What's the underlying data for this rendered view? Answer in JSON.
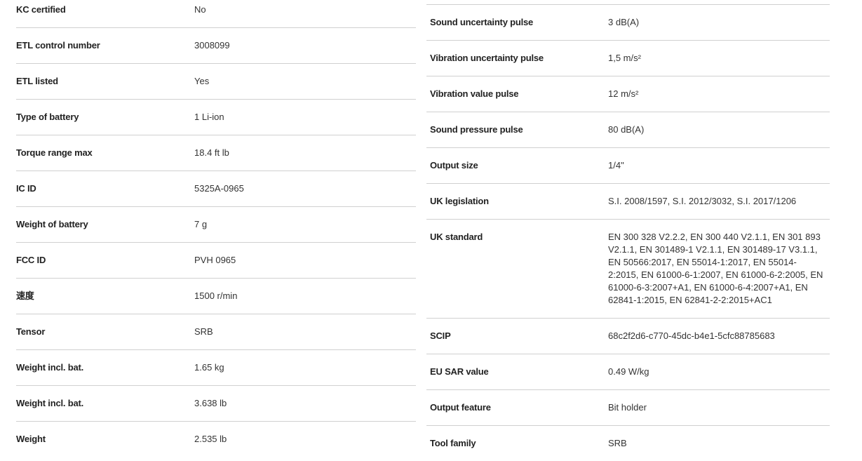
{
  "left": [
    {
      "label": "KC certified",
      "value": "No"
    },
    {
      "label": "ETL control number",
      "value": "3008099"
    },
    {
      "label": "ETL listed",
      "value": "Yes"
    },
    {
      "label": "Type of battery",
      "value": "1 Li-ion"
    },
    {
      "label": "Torque range max",
      "value": "18.4 ft lb"
    },
    {
      "label": "IC ID",
      "value": "5325A-0965"
    },
    {
      "label": "Weight of battery",
      "value": "7 g"
    },
    {
      "label": "FCC ID",
      "value": "PVH 0965"
    },
    {
      "label": "速度",
      "value": "1500 r/min"
    },
    {
      "label": "Tensor",
      "value": "SRB"
    },
    {
      "label": "Weight incl. bat.",
      "value": "1.65 kg"
    },
    {
      "label": "Weight incl. bat.",
      "value": "3.638 lb"
    },
    {
      "label": "Weight",
      "value": "2.535 lb"
    }
  ],
  "right": [
    {
      "label": "Sound uncertainty pulse",
      "value": "3 dB(A)"
    },
    {
      "label": "Vibration uncertainty pulse",
      "value": "1,5 m/s²"
    },
    {
      "label": "Vibration value pulse",
      "value": "12 m/s²"
    },
    {
      "label": "Sound pressure pulse",
      "value": "80 dB(A)"
    },
    {
      "label": "Output size",
      "value": "1/4\""
    },
    {
      "label": "UK legislation",
      "value": "S.I. 2008/1597, S.I. 2012/3032, S.I. 2017/1206"
    },
    {
      "label": "UK standard",
      "value": "EN 300 328 V2.2.2, EN 300 440 V2.1.1, EN 301 893 V2.1.1, EN 301489-1 V2.1.1, EN 301489-17 V3.1.1, EN 50566:2017, EN 55014-1:2017, EN 55014-2:2015, EN 61000-6-1:2007, EN 61000-6-2:2005, EN 61000-6-3:2007+A1, EN 61000-6-4:2007+A1, EN 62841-1:2015, EN 62841-2-2:2015+AC1"
    },
    {
      "label": "SCIP",
      "value": "68c2f2d6-c770-45dc-b4e1-5cfc88785683"
    },
    {
      "label": "EU SAR value",
      "value": "0.49 W/kg"
    },
    {
      "label": "Output feature",
      "value": "Bit holder"
    },
    {
      "label": "Tool family",
      "value": "SRB"
    }
  ]
}
